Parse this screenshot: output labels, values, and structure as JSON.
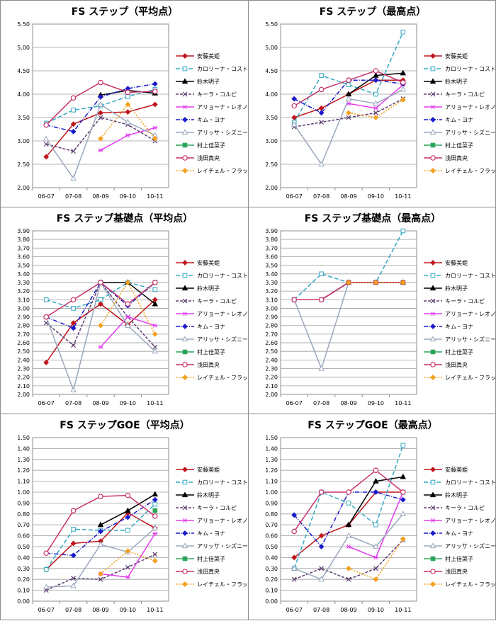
{
  "chart_data": [
    {
      "type": "line",
      "title": "FS ステップ（平均点）",
      "categories": [
        "06-07",
        "07-08",
        "08-09",
        "09-10",
        "10-11"
      ],
      "ylim": [
        2.0,
        5.5
      ],
      "ystep": 0.5,
      "decimals": 2,
      "series": [
        {
          "name": "安藤美姫",
          "values": [
            2.66,
            3.36,
            3.6,
            3.62,
            3.78
          ]
        },
        {
          "name": "カロリーナ・コストナー",
          "values": [
            3.38,
            3.66,
            3.75,
            3.95,
            4.1
          ]
        },
        {
          "name": "鈴木明子",
          "values": [
            null,
            null,
            3.98,
            4.08,
            4.02
          ]
        },
        {
          "name": "キーラ・コルピ",
          "values": [
            2.93,
            2.78,
            3.5,
            3.35,
            3.0
          ]
        },
        {
          "name": "アリョーナ・レオノワ",
          "values": [
            null,
            null,
            2.8,
            3.12,
            3.28
          ]
        },
        {
          "name": "キム・ヨナ",
          "values": [
            3.34,
            3.2,
            3.94,
            4.12,
            4.22
          ]
        },
        {
          "name": "アリッサ・シズニー",
          "values": [
            3.04,
            2.2,
            3.78,
            3.4,
            3.12
          ]
        },
        {
          "name": "村上佳菜子",
          "values": [
            null,
            null,
            null,
            null,
            null
          ]
        },
        {
          "name": "浅田真央",
          "values": [
            3.34,
            3.92,
            4.25,
            4.04,
            4.06
          ]
        },
        {
          "name": "レイチェル・フラット",
          "values": [
            null,
            null,
            3.05,
            3.78,
            3.05
          ]
        }
      ]
    },
    {
      "type": "line",
      "title": "FS ステップ（最高点）",
      "categories": [
        "06-07",
        "07-08",
        "08-09",
        "09-10",
        "10-11"
      ],
      "ylim": [
        2.0,
        5.5
      ],
      "ystep": 0.5,
      "decimals": 2,
      "series": [
        {
          "name": "安藤美姫",
          "values": [
            3.5,
            3.7,
            4.0,
            4.3,
            4.3
          ]
        },
        {
          "name": "カロリーナ・コストナー",
          "values": [
            3.4,
            4.4,
            4.2,
            4.0,
            5.33
          ]
        },
        {
          "name": "鈴木明子",
          "values": [
            null,
            null,
            4.0,
            4.4,
            4.45
          ]
        },
        {
          "name": "キーラ・コルピ",
          "values": [
            3.3,
            3.4,
            3.5,
            3.6,
            3.9
          ]
        },
        {
          "name": "アリョーナ・レオノワ",
          "values": [
            null,
            null,
            3.8,
            3.7,
            4.2
          ]
        },
        {
          "name": "キム・ヨナ",
          "values": [
            3.9,
            3.6,
            4.3,
            4.3,
            4.22
          ]
        },
        {
          "name": "アリッサ・シズニー",
          "values": [
            3.35,
            2.5,
            3.9,
            3.8,
            4.1
          ]
        },
        {
          "name": "村上佳菜子",
          "values": [
            null,
            null,
            null,
            null,
            null
          ]
        },
        {
          "name": "浅田真央",
          "values": [
            3.75,
            4.1,
            4.3,
            4.5,
            4.25
          ]
        },
        {
          "name": "レイチェル・フラット",
          "values": [
            null,
            null,
            3.6,
            3.5,
            3.88
          ]
        }
      ]
    },
    {
      "type": "line",
      "title": "FS ステップ基礎点（平均点）",
      "categories": [
        "06-07",
        "07-08",
        "08-09",
        "09-10",
        "10-11"
      ],
      "ylim": [
        2.0,
        3.9
      ],
      "ystep": 0.1,
      "decimals": 2,
      "series": [
        {
          "name": "安藤美姫",
          "values": [
            2.37,
            2.83,
            3.05,
            2.81,
            3.1
          ]
        },
        {
          "name": "カロリーナ・コストナー",
          "values": [
            3.1,
            3.0,
            3.1,
            3.3,
            3.22
          ]
        },
        {
          "name": "鈴木明子",
          "values": [
            null,
            null,
            3.3,
            3.3,
            3.05
          ]
        },
        {
          "name": "キーラ・コルピ",
          "values": [
            2.83,
            2.57,
            3.3,
            2.9,
            2.55
          ]
        },
        {
          "name": "アリョーナ・レオノワ",
          "values": [
            null,
            null,
            2.55,
            2.9,
            2.8
          ]
        },
        {
          "name": "キム・ヨナ",
          "values": [
            2.9,
            2.77,
            3.3,
            3.03,
            3.3
          ]
        },
        {
          "name": "アリッサ・シズニー",
          "values": [
            2.9,
            2.05,
            3.3,
            2.8,
            2.5
          ]
        },
        {
          "name": "村上佳菜子",
          "values": [
            null,
            null,
            null,
            null,
            3.3
          ]
        },
        {
          "name": "浅田真央",
          "values": [
            2.9,
            3.1,
            3.3,
            3.05,
            3.3
          ]
        },
        {
          "name": "レイチェル・フラット",
          "values": [
            null,
            null,
            2.8,
            3.3,
            2.7
          ]
        }
      ]
    },
    {
      "type": "line",
      "title": "FS ステップ基礎点（最高点）",
      "categories": [
        "06-07",
        "07-08",
        "08-09",
        "09-10",
        "10-11"
      ],
      "ylim": [
        2.0,
        3.9
      ],
      "ystep": 0.1,
      "decimals": 2,
      "series": [
        {
          "name": "安藤美姫",
          "values": [
            3.1,
            3.1,
            3.3,
            3.3,
            3.3
          ]
        },
        {
          "name": "カロリーナ・コストナー",
          "values": [
            3.1,
            3.4,
            3.3,
            3.3,
            3.9
          ]
        },
        {
          "name": "鈴木明子",
          "values": [
            null,
            null,
            3.3,
            3.3,
            3.3
          ]
        },
        {
          "name": "キーラ・コルピ",
          "values": [
            3.1,
            3.1,
            3.3,
            3.3,
            3.3
          ]
        },
        {
          "name": "アリョーナ・レオノワ",
          "values": [
            null,
            null,
            3.3,
            3.3,
            3.3
          ]
        },
        {
          "name": "キム・ヨナ",
          "values": [
            3.1,
            3.1,
            3.3,
            3.3,
            3.3
          ]
        },
        {
          "name": "アリッサ・シズニー",
          "values": [
            3.1,
            2.3,
            3.3,
            3.3,
            3.3
          ]
        },
        {
          "name": "村上佳菜子",
          "values": [
            null,
            null,
            null,
            null,
            3.3
          ]
        },
        {
          "name": "浅田真央",
          "values": [
            3.1,
            3.1,
            3.3,
            3.3,
            3.3
          ]
        },
        {
          "name": "レイチェル・フラット",
          "values": [
            null,
            null,
            3.3,
            3.3,
            3.3
          ]
        }
      ]
    },
    {
      "type": "line",
      "title": "FS ステップGOE（平均点）",
      "categories": [
        "06-07",
        "07-08",
        "08-09",
        "09-10",
        "10-11"
      ],
      "ylim": [
        0.0,
        1.5
      ],
      "ystep": 0.1,
      "decimals": 2,
      "series": [
        {
          "name": "安藤美姫",
          "values": [
            0.29,
            0.53,
            0.55,
            0.81,
            0.67
          ]
        },
        {
          "name": "カロリーナ・コストナー",
          "values": [
            0.29,
            0.66,
            0.65,
            0.65,
            0.89
          ]
        },
        {
          "name": "鈴木明子",
          "values": [
            null,
            null,
            0.7,
            0.83,
            0.98
          ]
        },
        {
          "name": "キーラ・コルピ",
          "values": [
            0.1,
            0.21,
            0.2,
            0.31,
            0.43
          ]
        },
        {
          "name": "アリョーナ・レオノワ",
          "values": [
            null,
            null,
            0.25,
            0.22,
            0.62
          ]
        },
        {
          "name": "キム・ヨナ",
          "values": [
            0.44,
            0.42,
            0.64,
            0.77,
            0.93
          ]
        },
        {
          "name": "アリッサ・シズニー",
          "values": [
            0.13,
            0.14,
            0.52,
            0.45,
            0.67
          ]
        },
        {
          "name": "村上佳菜子",
          "values": [
            null,
            null,
            null,
            null,
            0.83
          ]
        },
        {
          "name": "浅田真央",
          "values": [
            0.44,
            0.83,
            0.96,
            0.97,
            0.78
          ]
        },
        {
          "name": "レイチェル・フラット",
          "values": [
            null,
            null,
            0.25,
            0.46,
            0.37
          ]
        }
      ]
    },
    {
      "type": "line",
      "title": "FS ステップGOE（最高点）",
      "categories": [
        "06-07",
        "07-08",
        "08-09",
        "09-10",
        "10-11"
      ],
      "ylim": [
        0.0,
        1.5
      ],
      "ystep": 0.1,
      "decimals": 2,
      "series": [
        {
          "name": "安藤美姫",
          "values": [
            0.4,
            0.6,
            0.7,
            1.0,
            1.0
          ]
        },
        {
          "name": "カロリーナ・コストナー",
          "values": [
            0.3,
            1.0,
            0.9,
            0.7,
            1.43
          ]
        },
        {
          "name": "鈴木明子",
          "values": [
            null,
            null,
            0.7,
            1.1,
            1.14
          ]
        },
        {
          "name": "キーラ・コルピ",
          "values": [
            0.2,
            0.3,
            0.2,
            0.3,
            0.56
          ]
        },
        {
          "name": "アリョーナ・レオノワ",
          "values": [
            null,
            null,
            0.5,
            0.4,
            1.0
          ]
        },
        {
          "name": "キム・ヨナ",
          "values": [
            0.79,
            0.5,
            1.0,
            1.0,
            0.93
          ]
        },
        {
          "name": "アリッサ・シズニー",
          "values": [
            0.3,
            0.2,
            0.6,
            0.5,
            0.8
          ]
        },
        {
          "name": "村上佳菜子",
          "values": [
            null,
            null,
            null,
            null,
            1.0
          ]
        },
        {
          "name": "浅田真央",
          "values": [
            0.64,
            1.0,
            1.0,
            1.2,
            1.0
          ]
        },
        {
          "name": "レイチェル・フラット",
          "values": [
            null,
            null,
            0.3,
            0.2,
            0.57
          ]
        }
      ]
    }
  ],
  "series_styles": [
    {
      "color": "#c0151c",
      "dash": "",
      "marker": "diamond",
      "filled": true
    },
    {
      "color": "#31a7c3",
      "dash": "6,3",
      "marker": "square",
      "filled": false
    },
    {
      "color": "#000000",
      "dash": "",
      "marker": "triangle",
      "filled": true
    },
    {
      "color": "#5b3b6e",
      "dash": "4,2",
      "marker": "x",
      "filled": false
    },
    {
      "color": "#e23cf0",
      "dash": "",
      "marker": "asterisk",
      "filled": false
    },
    {
      "color": "#1a1acb",
      "dash": "6,2,1,2",
      "marker": "diamond",
      "filled": true
    },
    {
      "color": "#9aa7bd",
      "dash": "",
      "marker": "triangle",
      "filled": false
    },
    {
      "color": "#2aa65a",
      "dash": "",
      "marker": "square",
      "filled": true
    },
    {
      "color": "#c8316b",
      "dash": "",
      "marker": "circle",
      "filled": false
    },
    {
      "color": "#f2a01c",
      "dash": "2,2",
      "marker": "diamond",
      "filled": true
    }
  ]
}
